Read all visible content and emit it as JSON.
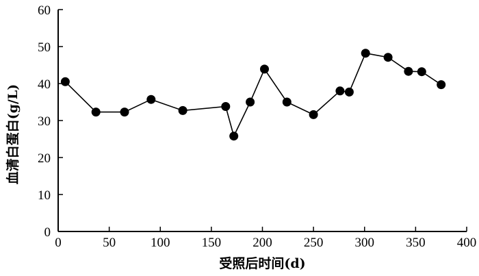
{
  "chart_data": {
    "type": "line",
    "title": "",
    "xlabel": "受照后时间(d)",
    "ylabel": "血清白蛋白(g/L)",
    "xlim": [
      0,
      400
    ],
    "ylim": [
      0,
      60
    ],
    "xticks": [
      0,
      50,
      100,
      150,
      200,
      250,
      300,
      350,
      400
    ],
    "yticks": [
      0,
      10,
      20,
      30,
      40,
      50,
      60
    ],
    "grid": false,
    "legend": "none",
    "series": [
      {
        "color": "#000000",
        "marker": "circle",
        "x": [
          7,
          37,
          65,
          91,
          122,
          164,
          172,
          188,
          202,
          224,
          250,
          276,
          285,
          301,
          323,
          343,
          356,
          375
        ],
        "y": [
          40.5,
          32.3,
          32.3,
          35.7,
          32.7,
          33.8,
          25.8,
          35.0,
          43.9,
          35.0,
          31.6,
          38.0,
          37.7,
          48.2,
          47.1,
          43.3,
          43.2,
          39.7
        ]
      }
    ]
  }
}
